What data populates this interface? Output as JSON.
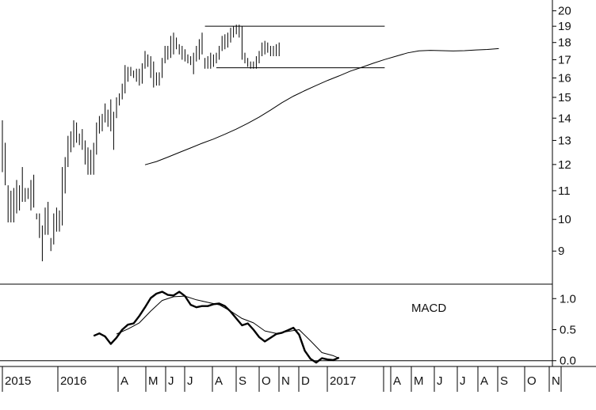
{
  "chart_data": [
    {
      "type": "ohlc",
      "panel": "price",
      "ylim": [
        8.3,
        20.3
      ],
      "y_scale": "log",
      "y_ticks": [
        9,
        10,
        11,
        12,
        13,
        14,
        15,
        16,
        17,
        18,
        19,
        20
      ],
      "y_tick_labels": [
        "9",
        "10",
        "11",
        "12",
        "13",
        "14",
        "15",
        "16",
        "17",
        "18",
        "19",
        "20"
      ],
      "x_labels": [
        "2015",
        "2016",
        "A",
        "M",
        "J",
        "J",
        "A",
        "S",
        "O",
        "N",
        "D",
        "2017",
        "",
        "A",
        "M",
        "J",
        "J",
        "A",
        "S",
        "O",
        "N"
      ],
      "bars": [
        [
          13.9,
          11.7
        ],
        [
          12.9,
          11.2
        ],
        [
          11.2,
          9.9
        ],
        [
          11.0,
          9.9
        ],
        [
          11.1,
          9.9
        ],
        [
          11.4,
          10.2
        ],
        [
          11.2,
          10.3
        ],
        [
          11.9,
          10.6
        ],
        [
          11.1,
          10.6
        ],
        [
          11.1,
          10.7
        ],
        [
          11.4,
          10.3
        ],
        [
          11.6,
          10.4
        ],
        [
          10.2,
          10.0
        ],
        [
          10.2,
          9.4
        ],
        [
          9.8,
          8.7
        ],
        [
          10.4,
          9.5
        ],
        [
          10.6,
          9.5
        ],
        [
          9.4,
          9.0
        ],
        [
          10.2,
          9.2
        ],
        [
          10.4,
          9.6
        ],
        [
          10.3,
          9.6
        ],
        [
          11.9,
          9.8
        ],
        [
          12.3,
          10.9
        ],
        [
          13.2,
          11.9
        ],
        [
          13.4,
          12.5
        ],
        [
          13.9,
          12.7
        ],
        [
          13.8,
          12.9
        ],
        [
          13.3,
          12.8
        ],
        [
          13.5,
          12.6
        ],
        [
          13.0,
          12.0
        ],
        [
          12.7,
          11.6
        ],
        [
          12.6,
          11.6
        ],
        [
          12.9,
          11.6
        ],
        [
          13.8,
          12.4
        ],
        [
          14.1,
          13.3
        ],
        [
          14.2,
          13.4
        ],
        [
          14.7,
          13.8
        ],
        [
          14.4,
          13.6
        ],
        [
          14.9,
          13.4
        ],
        [
          14.3,
          12.6
        ],
        [
          15.0,
          14.0
        ],
        [
          15.2,
          14.6
        ],
        [
          15.7,
          14.9
        ],
        [
          16.7,
          15.2
        ],
        [
          16.6,
          15.8
        ],
        [
          16.6,
          16.1
        ],
        [
          16.4,
          16.0
        ],
        [
          16.5,
          15.8
        ],
        [
          16.5,
          15.6
        ],
        [
          16.8,
          15.7
        ],
        [
          17.5,
          16.5
        ],
        [
          17.3,
          16.6
        ],
        [
          17.2,
          16.0
        ],
        [
          16.9,
          15.5
        ],
        [
          16.3,
          15.6
        ],
        [
          16.3,
          15.6
        ],
        [
          17.1,
          16.0
        ],
        [
          17.8,
          16.8
        ],
        [
          17.8,
          17.0
        ],
        [
          18.4,
          17.1
        ],
        [
          18.6,
          17.3
        ],
        [
          18.3,
          17.6
        ],
        [
          17.9,
          17.3
        ],
        [
          17.8,
          17.0
        ],
        [
          17.6,
          16.9
        ],
        [
          17.3,
          16.8
        ],
        [
          17.2,
          16.7
        ],
        [
          17.4,
          16.2
        ],
        [
          17.8,
          16.9
        ],
        [
          18.2,
          17.0
        ],
        [
          18.6,
          17.3
        ],
        [
          17.1,
          16.5
        ],
        [
          17.2,
          16.5
        ],
        [
          17.4,
          16.5
        ],
        [
          17.3,
          16.6
        ],
        [
          17.4,
          16.8
        ],
        [
          17.8,
          17.0
        ],
        [
          18.4,
          17.5
        ],
        [
          18.5,
          17.6
        ],
        [
          18.6,
          17.7
        ],
        [
          18.9,
          18.0
        ],
        [
          19.0,
          18.3
        ],
        [
          19.1,
          18.5
        ],
        [
          19.1,
          18.3
        ],
        [
          19.0,
          17.0
        ],
        [
          17.4,
          16.8
        ],
        [
          17.1,
          16.6
        ],
        [
          16.9,
          16.5
        ],
        [
          16.9,
          16.5
        ],
        [
          17.2,
          16.5
        ],
        [
          17.5,
          16.8
        ],
        [
          18.0,
          17.2
        ],
        [
          18.1,
          17.3
        ],
        [
          18.0,
          17.4
        ],
        [
          17.8,
          17.2
        ],
        [
          17.8,
          17.2
        ],
        [
          17.9,
          17.2
        ],
        [
          18.0,
          17.2
        ]
      ],
      "moving_average": [
        [
          50,
          11.99
        ],
        [
          54,
          12.12
        ],
        [
          58,
          12.3
        ],
        [
          62,
          12.49
        ],
        [
          66,
          12.68
        ],
        [
          70,
          12.88
        ],
        [
          74,
          13.06
        ],
        [
          78,
          13.27
        ],
        [
          82,
          13.5
        ],
        [
          86,
          13.76
        ],
        [
          90,
          14.05
        ],
        [
          94,
          14.38
        ],
        [
          98,
          14.74
        ],
        [
          102,
          15.06
        ],
        [
          106,
          15.34
        ],
        [
          110,
          15.61
        ],
        [
          114,
          15.87
        ],
        [
          118,
          16.11
        ],
        [
          122,
          16.37
        ],
        [
          126,
          16.58
        ],
        [
          130,
          16.8
        ],
        [
          134,
          17.01
        ],
        [
          138,
          17.2
        ],
        [
          142,
          17.39
        ],
        [
          146,
          17.51
        ],
        [
          150,
          17.54
        ],
        [
          154,
          17.52
        ],
        [
          158,
          17.5
        ],
        [
          162,
          17.52
        ],
        [
          166,
          17.56
        ],
        [
          170,
          17.59
        ],
        [
          174,
          17.64
        ]
      ],
      "horizontal_lines": [
        {
          "y": 19.0,
          "x_start": 71,
          "x_end": 134
        },
        {
          "y": 16.55,
          "x_start": 75,
          "x_end": 134
        }
      ]
    },
    {
      "type": "line",
      "panel": "indicator",
      "title": "MACD",
      "ylim": [
        -0.08,
        1.22
      ],
      "y_ticks": [
        0.0,
        0.5,
        1.0
      ],
      "y_tick_labels": [
        "0.0",
        "0.5",
        "1.0"
      ],
      "zero_line": true,
      "series": [
        {
          "style": "thick",
          "points": [
            [
              32,
              0.4
            ],
            [
              34,
              0.44
            ],
            [
              36,
              0.39
            ],
            [
              38,
              0.27
            ],
            [
              40,
              0.37
            ],
            [
              42,
              0.5
            ],
            [
              44,
              0.58
            ],
            [
              46,
              0.6
            ],
            [
              48,
              0.72
            ],
            [
              50,
              0.86
            ],
            [
              52,
              1.01
            ],
            [
              54,
              1.08
            ],
            [
              56,
              1.11
            ],
            [
              58,
              1.06
            ],
            [
              60,
              1.05
            ],
            [
              62,
              1.11
            ],
            [
              64,
              1.04
            ],
            [
              66,
              0.9
            ],
            [
              68,
              0.86
            ],
            [
              70,
              0.88
            ],
            [
              72,
              0.88
            ],
            [
              74,
              0.91
            ],
            [
              76,
              0.92
            ],
            [
              78,
              0.88
            ],
            [
              80,
              0.79
            ],
            [
              82,
              0.68
            ],
            [
              84,
              0.57
            ],
            [
              86,
              0.6
            ],
            [
              88,
              0.5
            ],
            [
              90,
              0.38
            ],
            [
              92,
              0.31
            ],
            [
              94,
              0.37
            ],
            [
              96,
              0.43
            ],
            [
              98,
              0.45
            ],
            [
              100,
              0.49
            ],
            [
              102,
              0.53
            ],
            [
              104,
              0.42
            ],
            [
              106,
              0.16
            ],
            [
              108,
              0.03
            ],
            [
              110,
              -0.03
            ],
            [
              112,
              0.04
            ],
            [
              114,
              0.02
            ],
            [
              116,
              0.01
            ],
            [
              118,
              0.05
            ]
          ]
        },
        {
          "style": "thin",
          "points": [
            [
              40,
              0.43
            ],
            [
              44,
              0.51
            ],
            [
              48,
              0.61
            ],
            [
              52,
              0.8
            ],
            [
              56,
              0.97
            ],
            [
              60,
              1.03
            ],
            [
              64,
              1.04
            ],
            [
              68,
              0.98
            ],
            [
              72,
              0.94
            ],
            [
              76,
              0.9
            ],
            [
              80,
              0.8
            ],
            [
              84,
              0.68
            ],
            [
              88,
              0.61
            ],
            [
              92,
              0.48
            ],
            [
              96,
              0.44
            ],
            [
              100,
              0.47
            ],
            [
              104,
              0.5
            ],
            [
              108,
              0.32
            ],
            [
              112,
              0.13
            ],
            [
              116,
              0.08
            ],
            [
              118,
              0.04
            ]
          ]
        }
      ]
    }
  ]
}
